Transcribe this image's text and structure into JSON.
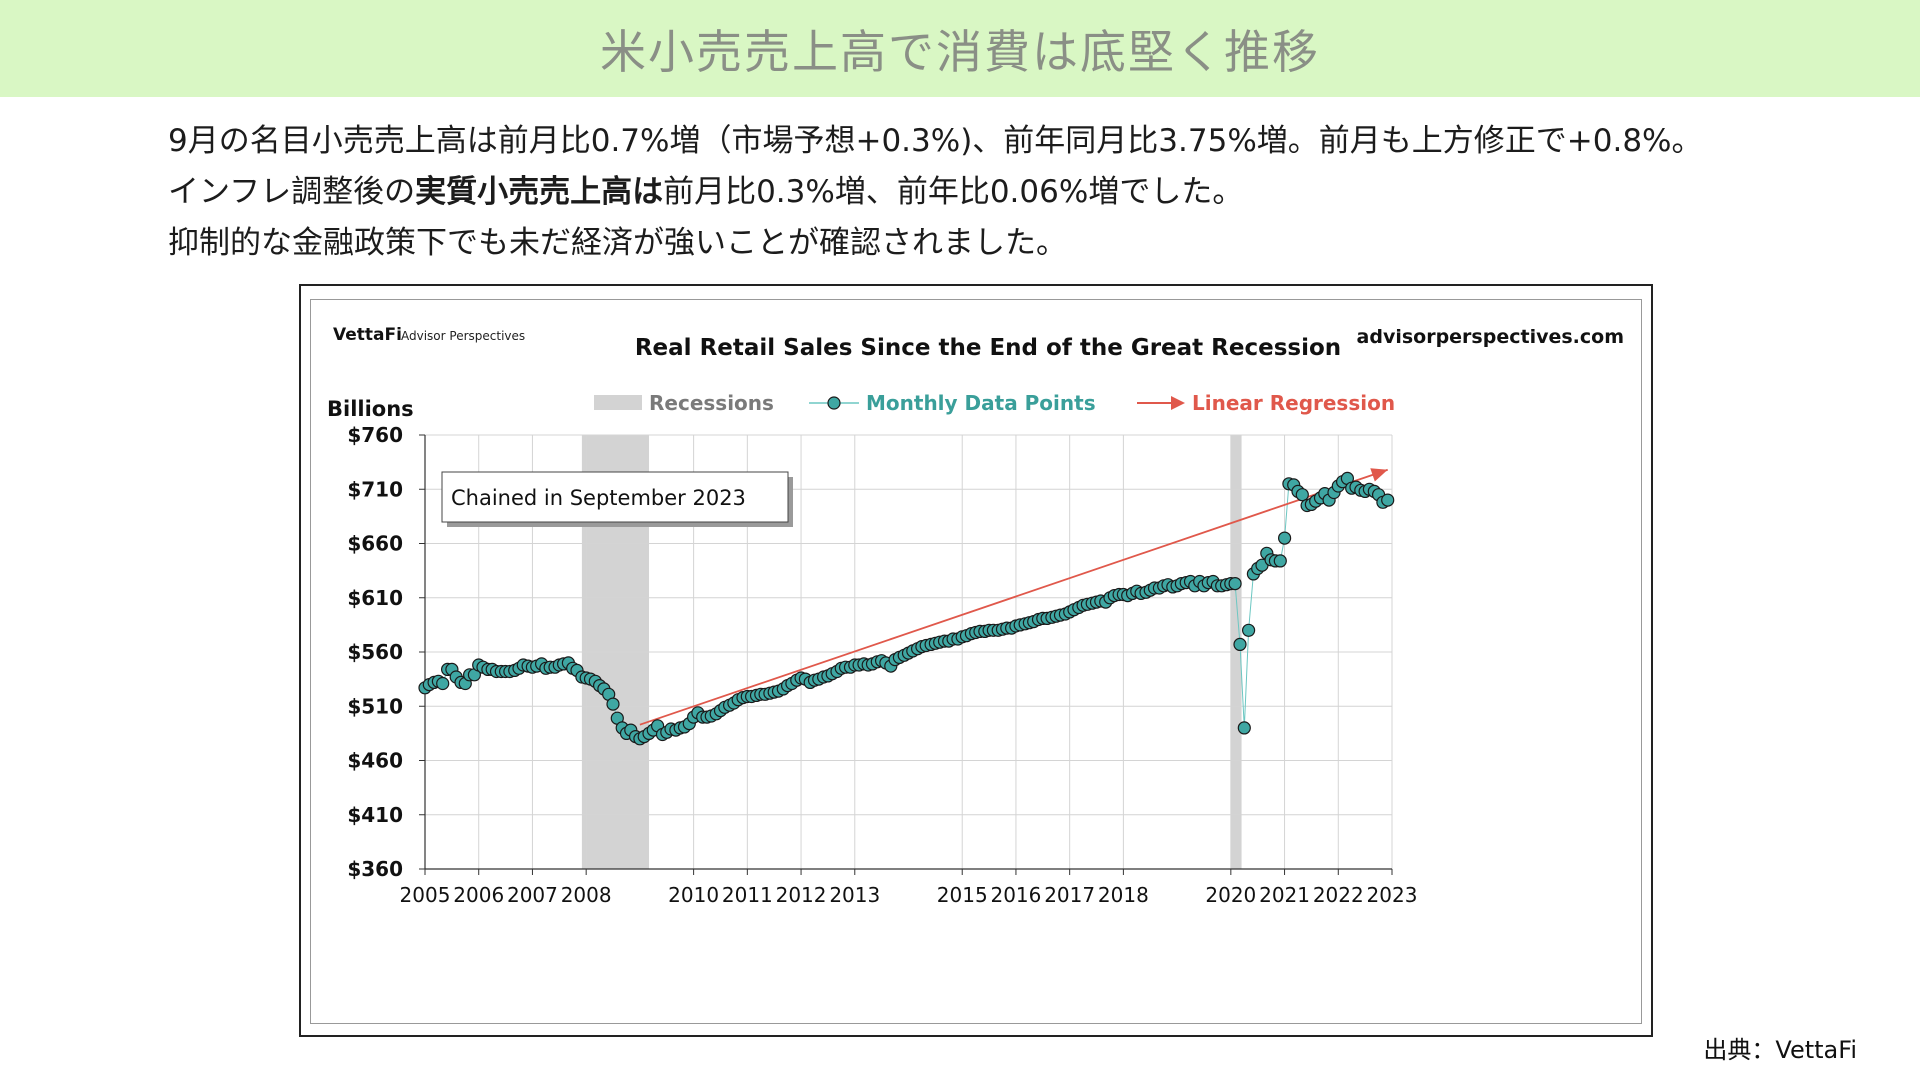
{
  "page": {
    "title": "米小売売上高で消費は底堅く推移",
    "summary": {
      "line1": "9月の名目小売売上高は前月比0.7%増（市場予想+0.3%)、前年同月比3.75%増。前月も上方修正で+0.8%。",
      "line2_prefix": "インフレ調整後の",
      "line2_bold": "実質小売売上高は",
      "line2_suffix": "前月比0.3%増、前年比0.06%増でした。",
      "line3": "抑制的な金融政策下でも未だ経済が強いことが確認されました。"
    },
    "source": "出典：VettaFi"
  },
  "chart_data": {
    "type": "scatter",
    "title": "Real  Retail Sales Since the End of the Great Recession",
    "logo_text": "VettaFi",
    "logo_subtext": "Advisor Perspectives",
    "website": "advisorperspectives.com",
    "ylabel": "Billions",
    "annotation": "Chained in September 2023",
    "ylim": [
      360,
      760
    ],
    "yticks": [
      360,
      410,
      460,
      510,
      560,
      610,
      660,
      710,
      760
    ],
    "ytick_labels": [
      "$360",
      "$410",
      "$460",
      "$510",
      "$560",
      "$610",
      "$660",
      "$710",
      "$760"
    ],
    "xlim": [
      2005,
      2023
    ],
    "xticks": [
      2005,
      2006,
      2007,
      2008,
      2010,
      2011,
      2012,
      2013,
      2015,
      2016,
      2017,
      2018,
      2020,
      2021,
      2022,
      2023
    ],
    "xtick_labels": [
      "2005",
      "2006",
      "2007",
      "2008",
      "2010",
      "2011",
      "2012",
      "2013",
      "2015",
      "2016",
      "2017",
      "2018",
      "2020",
      "2021",
      "2022",
      "2023"
    ],
    "grid": true,
    "legend": {
      "placement": "top",
      "recessions": "Recessions",
      "series": "Monthly Data Points",
      "regression": "Linear Regression"
    },
    "colors": {
      "points": "#3fa7a3",
      "line": "#6cc7c2",
      "regression": "#e0584b",
      "recession": "#d3d3d3",
      "series_legend_text": "#3a9f9a",
      "regression_legend_text": "#e0584b",
      "recession_legend_text": "#7a7a7a"
    },
    "recessions": [
      [
        2007.92,
        2009.17
      ],
      [
        2020.0,
        2020.2
      ]
    ],
    "regression": {
      "x": [
        2009.0,
        2022.92
      ],
      "y": [
        493,
        728
      ]
    },
    "series": [
      {
        "name": "Monthly Data Points",
        "points": [
          [
            2005.0,
            527
          ],
          [
            2005.08,
            530
          ],
          [
            2005.17,
            532
          ],
          [
            2005.25,
            533
          ],
          [
            2005.33,
            531
          ],
          [
            2005.42,
            544
          ],
          [
            2005.5,
            544
          ],
          [
            2005.58,
            537
          ],
          [
            2005.67,
            532
          ],
          [
            2005.75,
            531
          ],
          [
            2005.83,
            539
          ],
          [
            2005.92,
            539
          ],
          [
            2006.0,
            548
          ],
          [
            2006.08,
            546
          ],
          [
            2006.17,
            544
          ],
          [
            2006.25,
            544
          ],
          [
            2006.33,
            542
          ],
          [
            2006.42,
            542
          ],
          [
            2006.5,
            542
          ],
          [
            2006.58,
            542
          ],
          [
            2006.67,
            543
          ],
          [
            2006.75,
            545
          ],
          [
            2006.83,
            548
          ],
          [
            2006.92,
            547
          ],
          [
            2007.0,
            546
          ],
          [
            2007.08,
            547
          ],
          [
            2007.17,
            549
          ],
          [
            2007.25,
            545
          ],
          [
            2007.33,
            546
          ],
          [
            2007.42,
            546
          ],
          [
            2007.5,
            548
          ],
          [
            2007.58,
            549
          ],
          [
            2007.67,
            550
          ],
          [
            2007.75,
            545
          ],
          [
            2007.83,
            543
          ],
          [
            2007.92,
            537
          ],
          [
            2008.0,
            536
          ],
          [
            2008.08,
            535
          ],
          [
            2008.17,
            533
          ],
          [
            2008.25,
            529
          ],
          [
            2008.33,
            526
          ],
          [
            2008.42,
            521
          ],
          [
            2008.5,
            512
          ],
          [
            2008.58,
            499
          ],
          [
            2008.67,
            490
          ],
          [
            2008.75,
            485
          ],
          [
            2008.83,
            488
          ],
          [
            2008.92,
            482
          ],
          [
            2009.0,
            480
          ],
          [
            2009.08,
            482
          ],
          [
            2009.17,
            485
          ],
          [
            2009.25,
            488
          ],
          [
            2009.33,
            492
          ],
          [
            2009.42,
            484
          ],
          [
            2009.5,
            486
          ],
          [
            2009.58,
            489
          ],
          [
            2009.67,
            488
          ],
          [
            2009.75,
            490
          ],
          [
            2009.83,
            491
          ],
          [
            2009.92,
            494
          ],
          [
            2010.0,
            500
          ],
          [
            2010.08,
            504
          ],
          [
            2010.17,
            500
          ],
          [
            2010.25,
            500
          ],
          [
            2010.33,
            501
          ],
          [
            2010.42,
            503
          ],
          [
            2010.5,
            506
          ],
          [
            2010.58,
            509
          ],
          [
            2010.67,
            511
          ],
          [
            2010.75,
            513
          ],
          [
            2010.83,
            516
          ],
          [
            2010.92,
            518
          ],
          [
            2011.0,
            519
          ],
          [
            2011.08,
            519
          ],
          [
            2011.17,
            520
          ],
          [
            2011.25,
            521
          ],
          [
            2011.33,
            521
          ],
          [
            2011.42,
            522
          ],
          [
            2011.5,
            523
          ],
          [
            2011.58,
            524
          ],
          [
            2011.67,
            526
          ],
          [
            2011.75,
            529
          ],
          [
            2011.83,
            531
          ],
          [
            2011.92,
            534
          ],
          [
            2012.0,
            536
          ],
          [
            2012.08,
            535
          ],
          [
            2012.17,
            532
          ],
          [
            2012.25,
            534
          ],
          [
            2012.33,
            535
          ],
          [
            2012.42,
            537
          ],
          [
            2012.5,
            538
          ],
          [
            2012.58,
            540
          ],
          [
            2012.67,
            542
          ],
          [
            2012.75,
            545
          ],
          [
            2012.83,
            546
          ],
          [
            2012.92,
            546
          ],
          [
            2013.0,
            548
          ],
          [
            2013.08,
            548
          ],
          [
            2013.17,
            549
          ],
          [
            2013.25,
            548
          ],
          [
            2013.33,
            549
          ],
          [
            2013.42,
            551
          ],
          [
            2013.5,
            552
          ],
          [
            2013.58,
            550
          ],
          [
            2013.67,
            547
          ],
          [
            2013.75,
            553
          ],
          [
            2013.83,
            555
          ],
          [
            2013.92,
            557
          ],
          [
            2014.0,
            559
          ],
          [
            2014.08,
            561
          ],
          [
            2014.17,
            563
          ],
          [
            2014.25,
            565
          ],
          [
            2014.33,
            566
          ],
          [
            2014.42,
            567
          ],
          [
            2014.5,
            568
          ],
          [
            2014.58,
            569
          ],
          [
            2014.67,
            570
          ],
          [
            2014.75,
            570
          ],
          [
            2014.83,
            572
          ],
          [
            2014.92,
            572
          ],
          [
            2015.0,
            574
          ],
          [
            2015.08,
            575
          ],
          [
            2015.17,
            577
          ],
          [
            2015.25,
            578
          ],
          [
            2015.33,
            579
          ],
          [
            2015.42,
            579
          ],
          [
            2015.5,
            580
          ],
          [
            2015.58,
            580
          ],
          [
            2015.67,
            580
          ],
          [
            2015.75,
            581
          ],
          [
            2015.83,
            582
          ],
          [
            2015.92,
            582
          ],
          [
            2016.0,
            584
          ],
          [
            2016.08,
            585
          ],
          [
            2016.17,
            586
          ],
          [
            2016.25,
            587
          ],
          [
            2016.33,
            588
          ],
          [
            2016.42,
            590
          ],
          [
            2016.5,
            591
          ],
          [
            2016.58,
            591
          ],
          [
            2016.67,
            592
          ],
          [
            2016.75,
            593
          ],
          [
            2016.83,
            594
          ],
          [
            2016.92,
            595
          ],
          [
            2017.0,
            597
          ],
          [
            2017.08,
            599
          ],
          [
            2017.17,
            601
          ],
          [
            2017.25,
            603
          ],
          [
            2017.33,
            604
          ],
          [
            2017.42,
            605
          ],
          [
            2017.5,
            606
          ],
          [
            2017.58,
            607
          ],
          [
            2017.67,
            606
          ],
          [
            2017.75,
            610
          ],
          [
            2017.83,
            612
          ],
          [
            2017.92,
            613
          ],
          [
            2018.0,
            613
          ],
          [
            2018.08,
            612
          ],
          [
            2018.17,
            614
          ],
          [
            2018.25,
            616
          ],
          [
            2018.33,
            614
          ],
          [
            2018.42,
            615
          ],
          [
            2018.5,
            617
          ],
          [
            2018.58,
            619
          ],
          [
            2018.67,
            619
          ],
          [
            2018.75,
            621
          ],
          [
            2018.83,
            622
          ],
          [
            2018.92,
            620
          ],
          [
            2019.0,
            621
          ],
          [
            2019.08,
            623
          ],
          [
            2019.17,
            624
          ],
          [
            2019.25,
            625
          ],
          [
            2019.33,
            621
          ],
          [
            2019.42,
            625
          ],
          [
            2019.5,
            621
          ],
          [
            2019.58,
            624
          ],
          [
            2019.67,
            625
          ],
          [
            2019.75,
            621
          ],
          [
            2019.83,
            621
          ],
          [
            2019.92,
            622
          ],
          [
            2020.0,
            623
          ],
          [
            2020.08,
            623
          ],
          [
            2020.17,
            567
          ],
          [
            2020.25,
            490
          ],
          [
            2020.33,
            580
          ],
          [
            2020.42,
            632
          ],
          [
            2020.5,
            637
          ],
          [
            2020.58,
            640
          ],
          [
            2020.67,
            651
          ],
          [
            2020.75,
            645
          ],
          [
            2020.83,
            644
          ],
          [
            2020.92,
            644
          ],
          [
            2021.0,
            665
          ],
          [
            2021.08,
            715
          ],
          [
            2021.17,
            714
          ],
          [
            2021.25,
            708
          ],
          [
            2021.33,
            705
          ],
          [
            2021.42,
            695
          ],
          [
            2021.5,
            696
          ],
          [
            2021.58,
            699
          ],
          [
            2021.67,
            702
          ],
          [
            2021.75,
            706
          ],
          [
            2021.83,
            700
          ],
          [
            2021.92,
            707
          ],
          [
            2022.0,
            713
          ],
          [
            2022.08,
            717
          ],
          [
            2022.17,
            720
          ],
          [
            2022.25,
            711
          ],
          [
            2022.33,
            712
          ],
          [
            2022.42,
            709
          ],
          [
            2022.5,
            708
          ],
          [
            2022.58,
            710
          ],
          [
            2022.67,
            708
          ],
          [
            2022.75,
            705
          ],
          [
            2022.83,
            698
          ],
          [
            2022.92,
            700
          ]
        ]
      }
    ]
  }
}
